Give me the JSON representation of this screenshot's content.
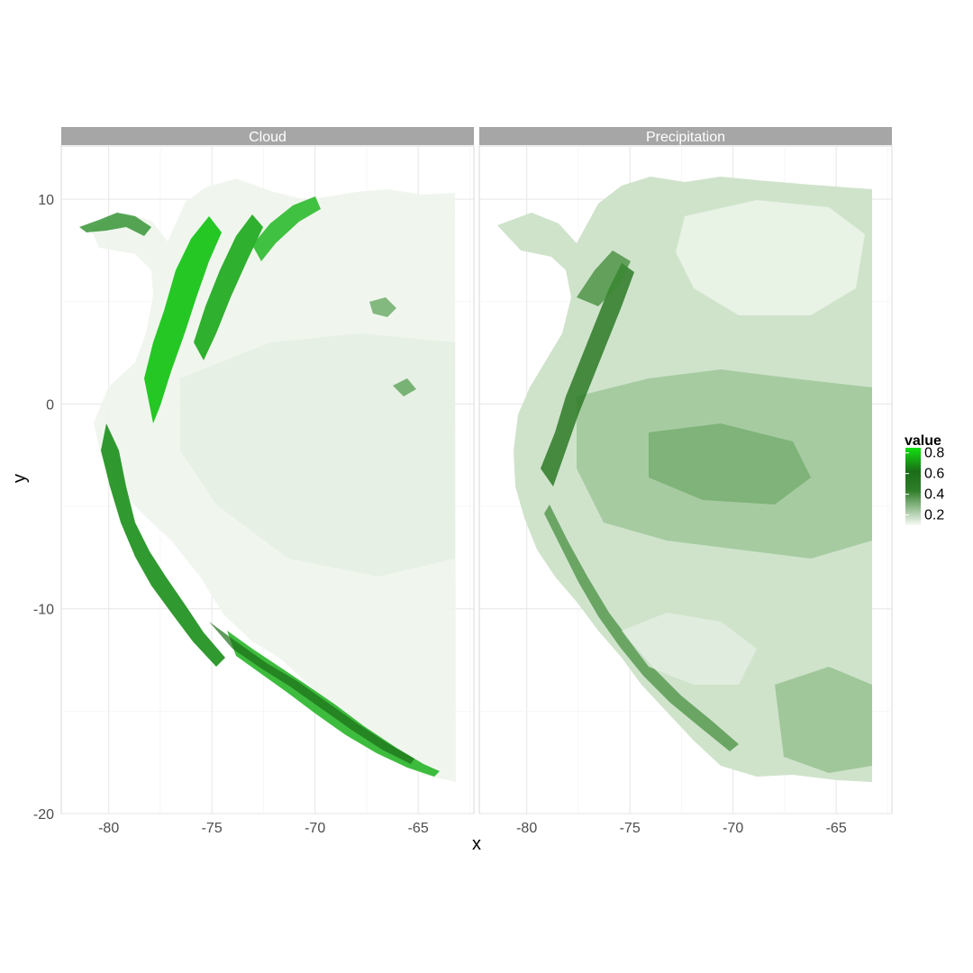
{
  "chart_data": {
    "type": "heatmap",
    "panels": [
      {
        "name": "Cloud"
      },
      {
        "name": "Precipitation"
      }
    ],
    "xlabel": "x",
    "ylabel": "y",
    "xlim": [
      -82.3,
      -62.3
    ],
    "ylim": [
      -20,
      12.6
    ],
    "x_ticks": [
      -80,
      -75,
      -70,
      -65
    ],
    "y_ticks": [
      10,
      0,
      -10,
      -20
    ],
    "legend": {
      "title": "value",
      "position": "right",
      "ticks": [
        0.8,
        0.6,
        0.4,
        0.2
      ],
      "range": [
        0.1,
        0.85
      ],
      "colors": {
        "low": "#f7fbf5",
        "mid": "#1f6b1a",
        "high": "#12e012"
      }
    },
    "grid": true,
    "panel_background": "#ffffff",
    "strip_color": "#a6a6a6"
  }
}
